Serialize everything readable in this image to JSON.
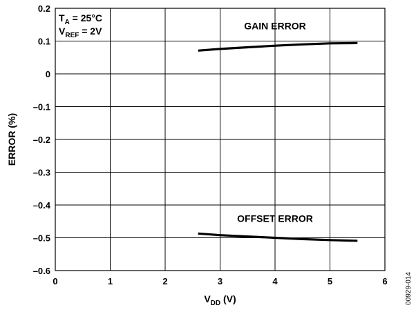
{
  "chart_data": {
    "type": "line",
    "xlabel": {
      "main": "V",
      "sub": "DD",
      "unit": " (V)"
    },
    "ylabel": "ERROR (%)",
    "xlim": [
      0,
      6
    ],
    "ylim": [
      -0.6,
      0.2
    ],
    "x_ticks": [
      0,
      1,
      2,
      3,
      4,
      5,
      6
    ],
    "x_tick_labels": [
      "0",
      "1",
      "2",
      "3",
      "4",
      "5",
      "6"
    ],
    "y_ticks": [
      0.2,
      0.1,
      0,
      -0.1,
      -0.2,
      -0.3,
      -0.4,
      -0.5,
      -0.6
    ],
    "y_tick_labels": [
      "0.2",
      "0.1",
      "0",
      "–0.1",
      "–0.2",
      "–0.3",
      "–0.4",
      "–0.5",
      "–0.6"
    ],
    "grid": true,
    "series": [
      {
        "name": "GAIN ERROR",
        "x": [
          2.6,
          3.0,
          3.5,
          4.0,
          4.5,
          5.0,
          5.5
        ],
        "y": [
          0.071,
          0.076,
          0.081,
          0.086,
          0.09,
          0.093,
          0.094
        ]
      },
      {
        "name": "OFFSET ERROR",
        "x": [
          2.6,
          3.0,
          3.5,
          4.0,
          4.5,
          5.0,
          5.5
        ],
        "y": [
          -0.487,
          -0.492,
          -0.496,
          -0.5,
          -0.504,
          -0.507,
          -0.509
        ]
      }
    ],
    "conditions": [
      {
        "main": "T",
        "sub": "A",
        "rest": " = 25°C"
      },
      {
        "main": "V",
        "sub": "REF",
        "rest": " = 2V"
      }
    ],
    "figure_id": "00929-014"
  }
}
